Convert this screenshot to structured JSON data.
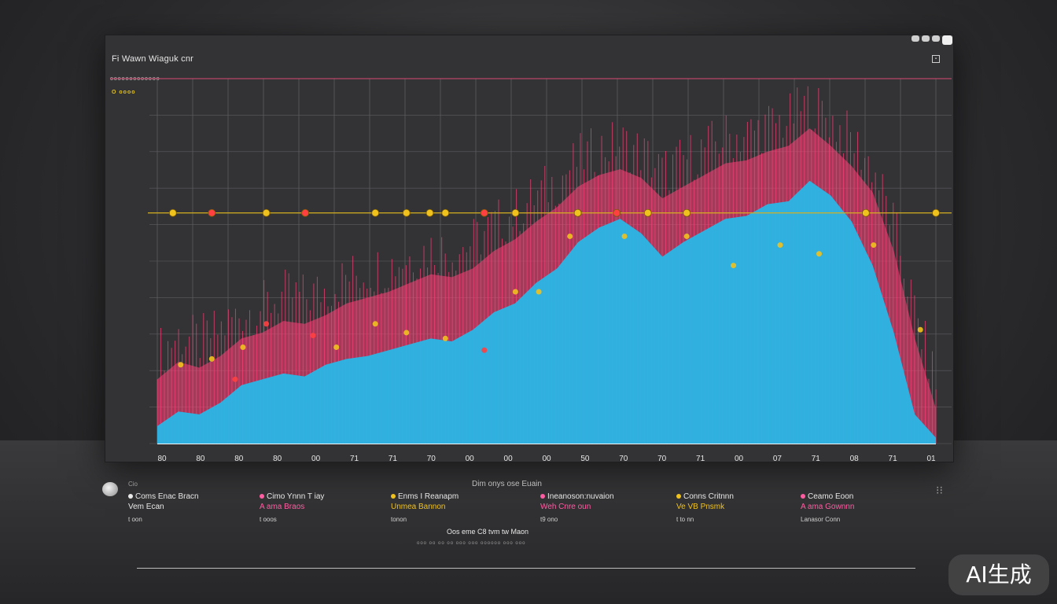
{
  "panel": {
    "title": "Fi Wawn Wiaguk cnr",
    "subtitle": "ooooooooooooo",
    "ylabel": "O  oooo"
  },
  "legend": {
    "heading": "Dim  onys ose  Euain",
    "columns": [
      {
        "l1": "Coms Enac Bracn",
        "l2": "Vem Ecan",
        "l3": "t oon",
        "color": "#e9e9e9"
      },
      {
        "l1": "Cimo Ynnn T iay",
        "l2": "A ama Braos",
        "l3": "t ooos",
        "color": "#ff5da2"
      },
      {
        "l1": "Enms I Reanapm",
        "l2": "Unmea Bannon",
        "l3": "tonon",
        "color": "#f0c21e"
      },
      {
        "l1": "Ineanoson:nuvaion",
        "l2": "Weh Cnre oun",
        "l3": "t9 ono",
        "color": "#ff5da2"
      },
      {
        "l1": "Conns Critnnn",
        "l2": "Ve VB Pnsmk",
        "l3": "t to nn",
        "color": "#f0c21e"
      },
      {
        "l1": "Ceamo Eoon",
        "l2": "A ama Gownnn",
        "l3": "Lanasor Conn",
        "color": "#ff5da2"
      }
    ]
  },
  "footer": {
    "line1": "Oos eme C8 tvm tw Maon",
    "line2": "ooo oo oo oo ooo ooo oooooo ooo ooo"
  },
  "knob_label": "Cio",
  "badge": "AI生成",
  "chart_data": {
    "type": "area",
    "x_tick_labels": [
      "80",
      "80",
      "80",
      "80",
      "00",
      "71",
      "71",
      "70",
      "00",
      "00",
      "00",
      "50",
      "70",
      "70",
      "71",
      "00",
      "07",
      "71",
      "08",
      "71",
      "01"
    ],
    "series": [
      {
        "name": "",
        "color": "#29b6e6",
        "values": [
          0.06,
          0.11,
          0.1,
          0.14,
          0.2,
          0.22,
          0.24,
          0.23,
          0.27,
          0.29,
          0.3,
          0.32,
          0.34,
          0.36,
          0.35,
          0.39,
          0.45,
          0.48,
          0.55,
          0.6,
          0.69,
          0.74,
          0.77,
          0.72,
          0.64,
          0.69,
          0.73,
          0.77,
          0.78,
          0.82,
          0.83,
          0.9,
          0.85,
          0.76,
          0.61,
          0.38,
          0.1,
          0.02
        ]
      },
      {
        "name": "",
        "color": "#ff3f78",
        "values": [
          0.22,
          0.28,
          0.26,
          0.3,
          0.36,
          0.38,
          0.42,
          0.41,
          0.44,
          0.48,
          0.5,
          0.52,
          0.55,
          0.58,
          0.57,
          0.6,
          0.66,
          0.7,
          0.76,
          0.81,
          0.88,
          0.92,
          0.94,
          0.91,
          0.84,
          0.88,
          0.92,
          0.96,
          0.97,
          1.0,
          1.02,
          1.08,
          1.02,
          0.95,
          0.86,
          0.66,
          0.36,
          0.12
        ]
      }
    ],
    "markers": [
      {
        "x": 0.03,
        "y": 0.27,
        "color": "#f0c21e"
      },
      {
        "x": 0.07,
        "y": 0.29,
        "color": "#f0c21e"
      },
      {
        "x": 0.1,
        "y": 0.22,
        "color": "#ff4040"
      },
      {
        "x": 0.11,
        "y": 0.33,
        "color": "#f0c21e"
      },
      {
        "x": 0.14,
        "y": 0.41,
        "color": "#ff4040"
      },
      {
        "x": 0.2,
        "y": 0.37,
        "color": "#ff4040"
      },
      {
        "x": 0.23,
        "y": 0.33,
        "color": "#f0c21e"
      },
      {
        "x": 0.28,
        "y": 0.41,
        "color": "#f0c21e"
      },
      {
        "x": 0.32,
        "y": 0.38,
        "color": "#f0c21e"
      },
      {
        "x": 0.37,
        "y": 0.36,
        "color": "#f0c21e"
      },
      {
        "x": 0.42,
        "y": 0.32,
        "color": "#ff4040"
      },
      {
        "x": 0.46,
        "y": 0.52,
        "color": "#f0c21e"
      },
      {
        "x": 0.49,
        "y": 0.52,
        "color": "#f0c21e"
      },
      {
        "x": 0.53,
        "y": 0.71,
        "color": "#f0c21e"
      },
      {
        "x": 0.6,
        "y": 0.71,
        "color": "#f0c21e"
      },
      {
        "x": 0.68,
        "y": 0.71,
        "color": "#f0c21e"
      },
      {
        "x": 0.74,
        "y": 0.61,
        "color": "#f0c21e"
      },
      {
        "x": 0.8,
        "y": 0.68,
        "color": "#f0c21e"
      },
      {
        "x": 0.85,
        "y": 0.65,
        "color": "#f0c21e"
      },
      {
        "x": 0.92,
        "y": 0.68,
        "color": "#f0c21e"
      },
      {
        "x": 0.98,
        "y": 0.39,
        "color": "#f0c21e"
      }
    ],
    "threshold_markers": [
      {
        "x": 0.02,
        "color": "#f0c21e"
      },
      {
        "x": 0.07,
        "color": "#ff4040"
      },
      {
        "x": 0.14,
        "color": "#f0c21e"
      },
      {
        "x": 0.19,
        "color": "#ff4040"
      },
      {
        "x": 0.28,
        "color": "#f0c21e"
      },
      {
        "x": 0.32,
        "color": "#f0c21e"
      },
      {
        "x": 0.35,
        "color": "#f0c21e"
      },
      {
        "x": 0.37,
        "color": "#f0c21e"
      },
      {
        "x": 0.42,
        "color": "#ff4040"
      },
      {
        "x": 0.46,
        "color": "#f0c21e"
      },
      {
        "x": 0.54,
        "color": "#f0c21e"
      },
      {
        "x": 0.59,
        "color": "#ff4040"
      },
      {
        "x": 0.63,
        "color": "#f0c21e"
      },
      {
        "x": 0.68,
        "color": "#f0c21e"
      },
      {
        "x": 0.91,
        "color": "#f0c21e"
      },
      {
        "x": 1.0,
        "color": "#f0c21e"
      }
    ],
    "threshold_level": 0.79,
    "grid": true,
    "ylim": [
      0,
      1.25
    ]
  }
}
